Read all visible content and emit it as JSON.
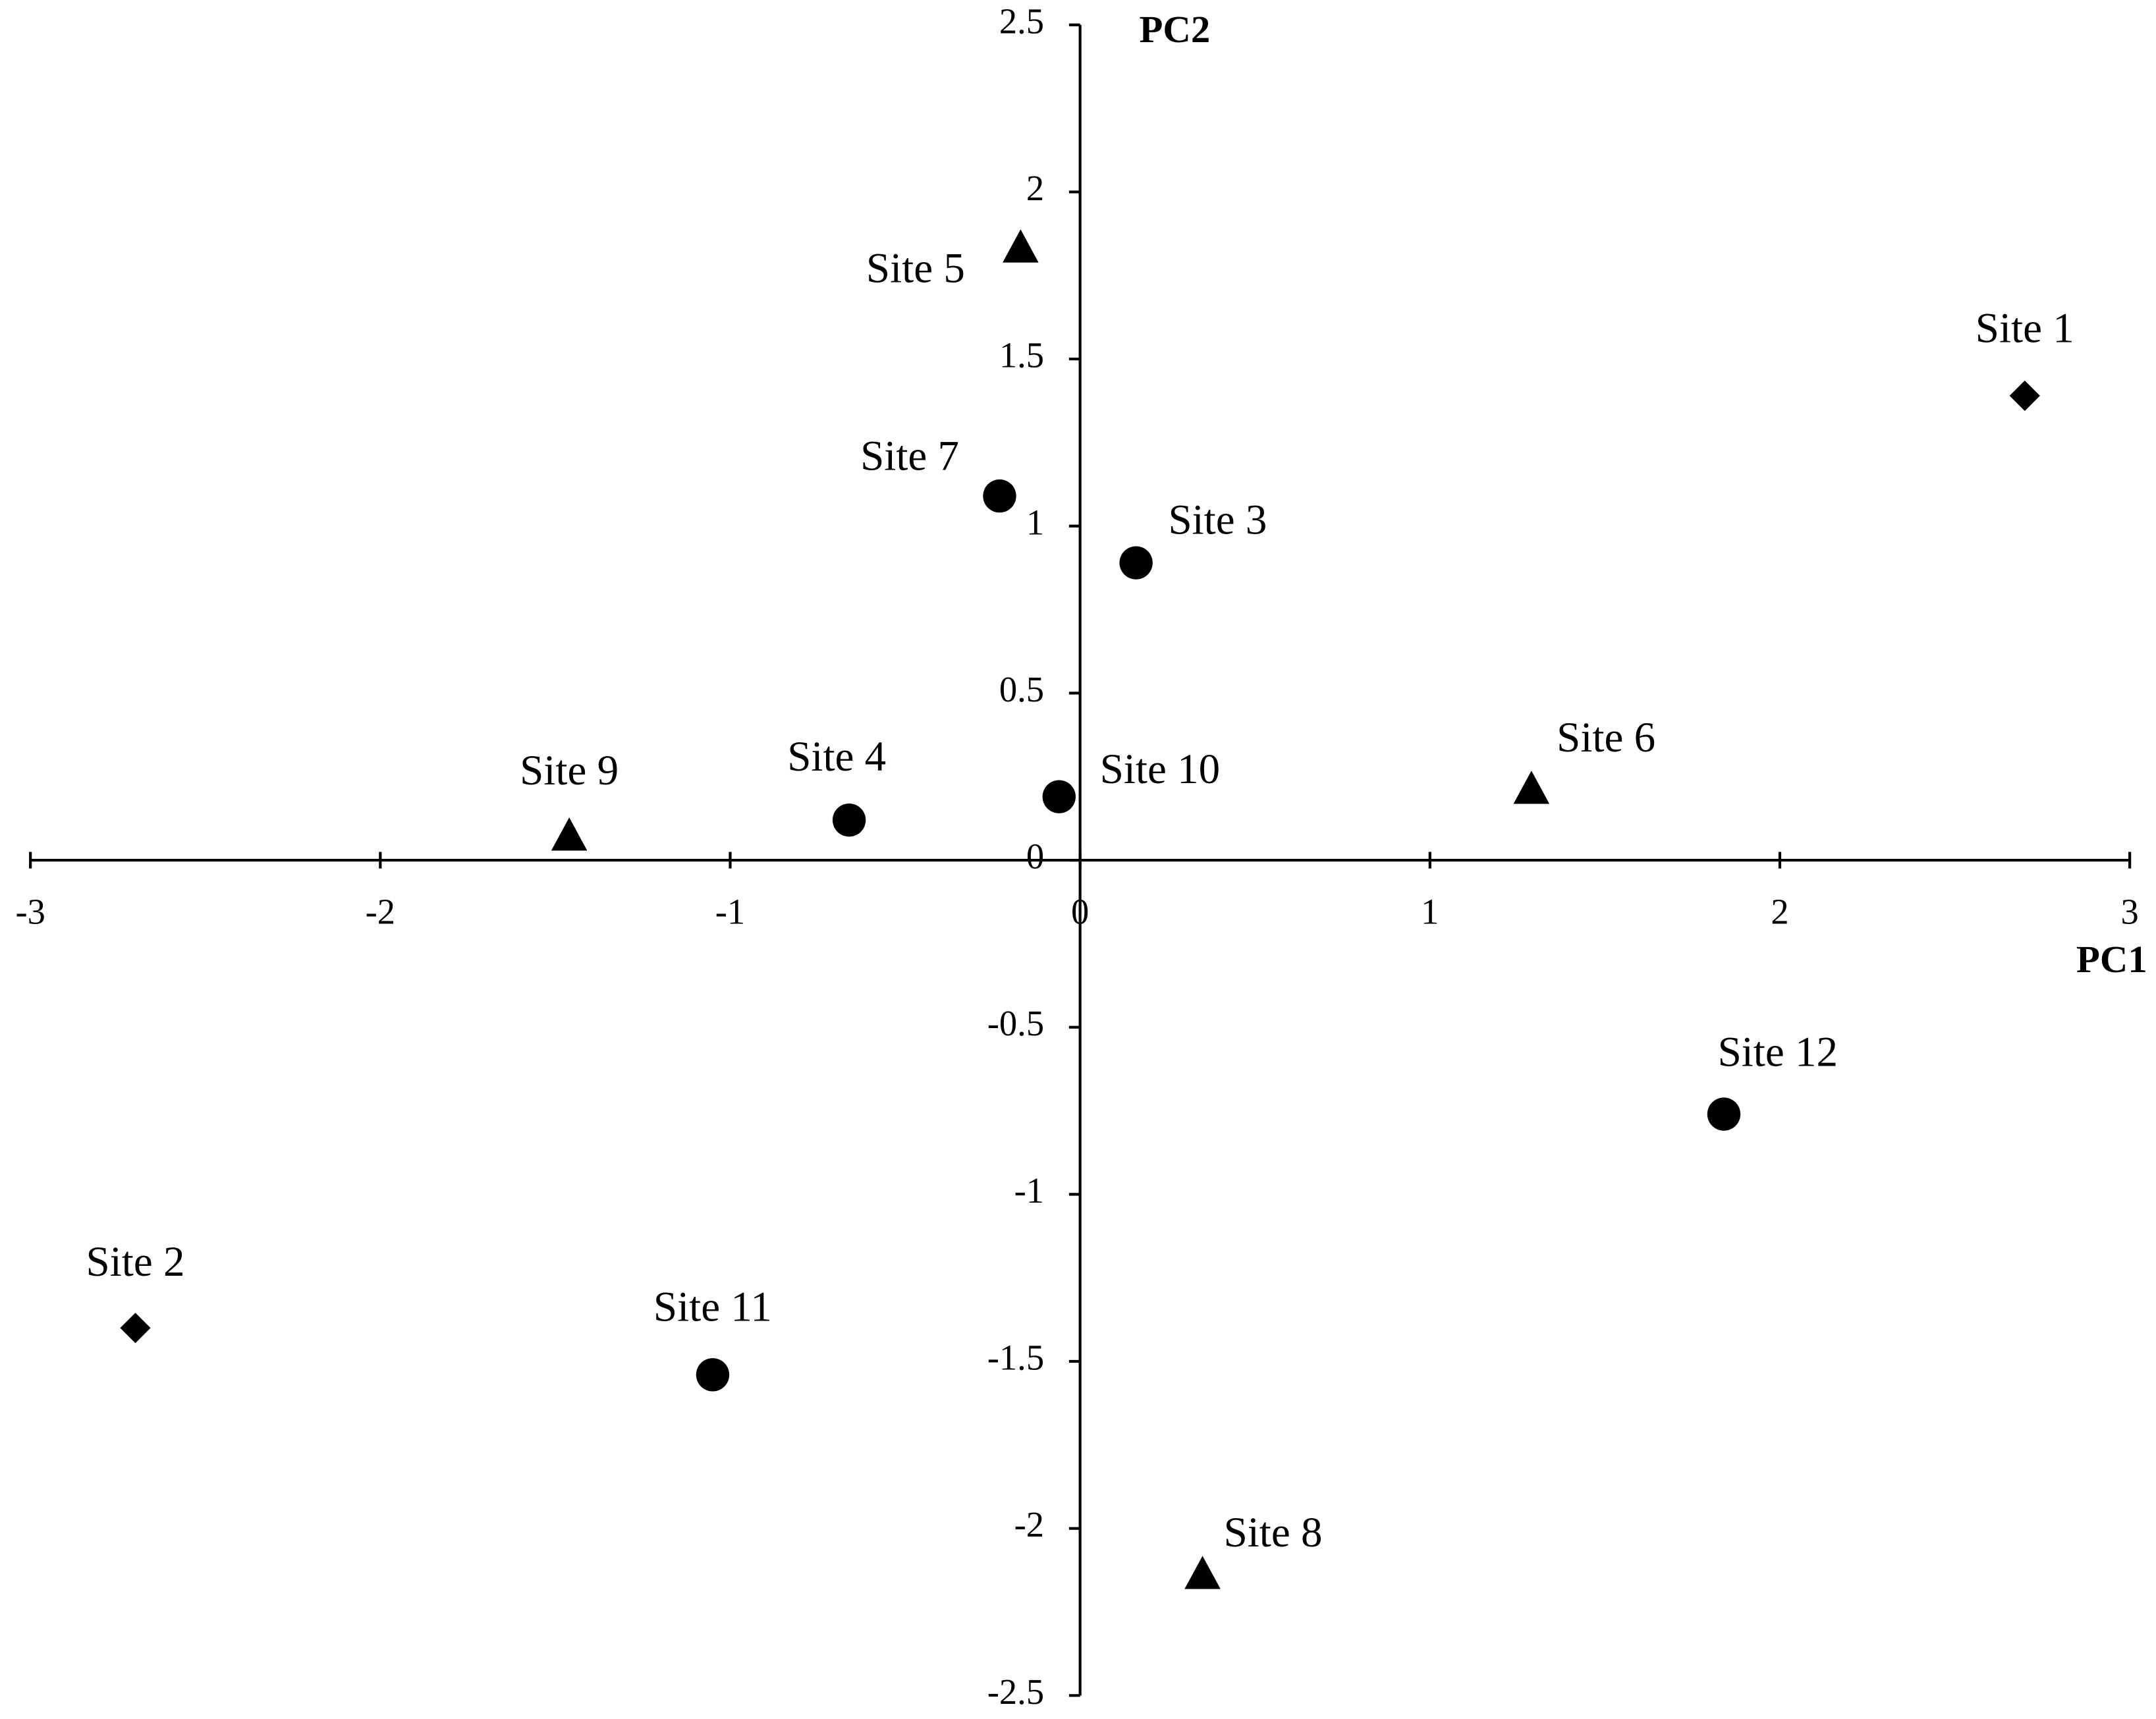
{
  "chart_data": {
    "type": "scatter",
    "x_label": "PC1",
    "y_label": "PC2",
    "xlim": [
      -3,
      3
    ],
    "ylim": [
      -2.5,
      2.5
    ],
    "xticks": [
      -3,
      -2,
      -1,
      0,
      1,
      2,
      3
    ],
    "yticks": [
      -2.5,
      -2,
      -1.5,
      -1,
      -0.5,
      0,
      0.5,
      1,
      1.5,
      2,
      2.5
    ],
    "series": [
      {
        "marker": "diamond",
        "color": "#000000",
        "labels": [
          "Site 1",
          "Site 2"
        ],
        "x": [
          2.7,
          -2.7
        ],
        "y": [
          1.39,
          -1.4
        ]
      },
      {
        "marker": "circle",
        "color": "#000000",
        "labels": [
          "Site 3",
          "Site 4",
          "Site 7",
          "Site 10",
          "Site 11",
          "Site 12"
        ],
        "x": [
          0.16,
          -0.66,
          -0.23,
          -0.06,
          -1.05,
          1.84
        ],
        "y": [
          0.89,
          0.12,
          1.09,
          0.19,
          -1.54,
          -0.76
        ]
      },
      {
        "marker": "triangle",
        "color": "#000000",
        "labels": [
          "Site 5",
          "Site 6",
          "Site 8",
          "Site 9"
        ],
        "x": [
          -0.17,
          1.29,
          0.35,
          -1.46
        ],
        "y": [
          1.83,
          0.21,
          -2.14,
          0.07
        ]
      }
    ]
  }
}
